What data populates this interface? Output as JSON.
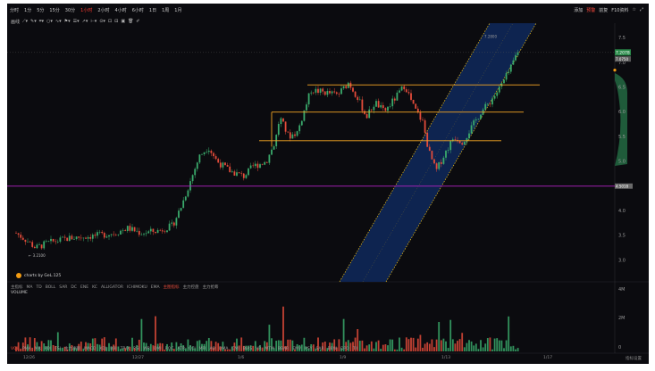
{
  "timeframes": [
    "分时",
    "1分",
    "5分",
    "15分",
    "30分",
    "1小时",
    "2小时",
    "4小时",
    "6小时",
    "1日",
    "1周",
    "1月"
  ],
  "active_timeframe_index": 5,
  "top_right": {
    "add": "添加",
    "alert": "预警",
    "adjust": "前复",
    "f10": "F10资料",
    "star_icon": "star-icon",
    "expand_icon": "expand-icon"
  },
  "draw_tools_label": "画线",
  "price_axis": {
    "ticks": [
      "7.5",
      "7.0",
      "6.5",
      "6.0",
      "5.5",
      "5.0",
      "4.5",
      "4.0",
      "3.5",
      "3.0"
    ],
    "current_price_tag": "7.2078",
    "prev_tag": "7.0750",
    "level_tag": "4.5018"
  },
  "low_label": "3.2100",
  "high_label": "7.2800",
  "watermark": "charts by GeL.125",
  "indicators": [
    "MA",
    "TD",
    "BOLL",
    "SAR",
    "DC",
    "ENE",
    "KC",
    "ALLIGATOR",
    "ICHIMOKU",
    "EMA"
  ],
  "indicator_prefix": "主指标",
  "indicator_active": "主图指标",
  "indicator_extra": [
    "主力控盘",
    "主力抢筹"
  ],
  "volume_label": "VOLUME",
  "volume_ticks": [
    "4M",
    "2M",
    "0"
  ],
  "bottom_indicators": [
    "VOL",
    "PMA",
    "MR",
    "PDI",
    "FSI",
    "主力净额",
    "MACD",
    "KDJ",
    "BBI",
    "TRIX",
    "RSI",
    "WR",
    "DMI",
    "ROC",
    "ATR",
    "CCI",
    "MFI",
    "AO",
    "DMA",
    "CMI",
    "BIAS",
    "VR",
    "MTM",
    "BBAR",
    "EMV",
    "PSY",
    "SAR",
    "BBW",
    "DPO",
    "TII"
  ],
  "x_ticks": [
    "12/26",
    "12/27",
    "1/6",
    "1/9",
    "1/13",
    "1/17"
  ],
  "corner_label": "指标设置",
  "colors": {
    "up": "#3aaa6b",
    "down": "#e34b3a",
    "level": "#f5a623",
    "purple": "#b020c0",
    "channel": "#f5c518",
    "channel_fill": "#0e2450"
  }
}
